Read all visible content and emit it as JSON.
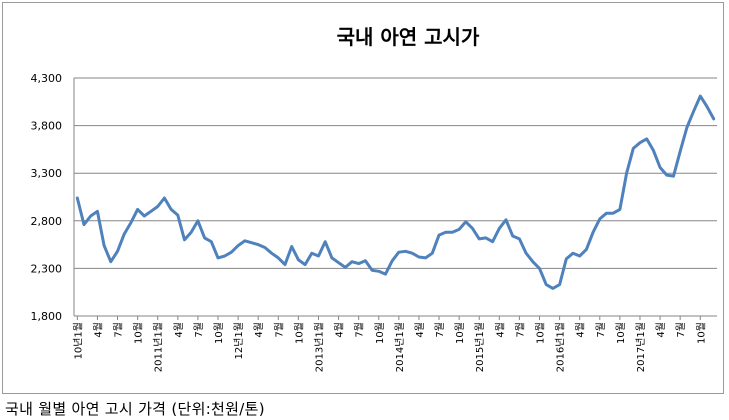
{
  "caption": "국내 월별 아연 고시 가격 (단위:천원/톤)",
  "chart_data": {
    "type": "line",
    "title": "국내 아연 고시가",
    "xlabel": "",
    "ylabel": "",
    "ylim": [
      1800,
      4300
    ],
    "yticks": [
      1800,
      2300,
      2800,
      3300,
      3800,
      4300
    ],
    "ytick_labels": [
      "1,800",
      "2,300",
      "2,800",
      "3,300",
      "3,800",
      "4,300"
    ],
    "grid": true,
    "line_color": "#4f81bd",
    "x_start": "2010-01",
    "tick_every_months": 3,
    "x_tick_labels": [
      "10년1월",
      "4월",
      "7월",
      "10월",
      "2011년1월",
      "4월",
      "7월",
      "10월",
      "12년1월",
      "4월",
      "7월",
      "10월",
      "2013년1월",
      "4월",
      "7월",
      "10월",
      "2014년1월",
      "4월",
      "7월",
      "10월",
      "2015년1월",
      "4월",
      "7월",
      "10월",
      "2016년1월",
      "4월",
      "7월",
      "10월",
      "2017년1월",
      "4월",
      "7월",
      "10월"
    ],
    "series": [
      {
        "values": [
          3040,
          2760,
          2850,
          2900,
          2540,
          2370,
          2480,
          2660,
          2780,
          2920,
          2850,
          2900,
          2950,
          3040,
          2920,
          2860,
          2600,
          2680,
          2800,
          2620,
          2580,
          2410,
          2430,
          2470,
          2540,
          2590,
          2570,
          2550,
          2520,
          2460,
          2410,
          2340,
          2530,
          2390,
          2340,
          2460,
          2430,
          2580,
          2410,
          2360,
          2310,
          2370,
          2350,
          2380,
          2280,
          2270,
          2240,
          2380,
          2470,
          2480,
          2460,
          2420,
          2410,
          2460,
          2650,
          2680,
          2680,
          2710,
          2790,
          2720,
          2610,
          2620,
          2580,
          2720,
          2810,
          2640,
          2610,
          2460,
          2370,
          2300,
          2130,
          2090,
          2130,
          2400,
          2460,
          2430,
          2500,
          2680,
          2820,
          2880,
          2880,
          2920,
          3300,
          3560,
          3620,
          3660,
          3540,
          3360,
          3280,
          3270,
          3530,
          3780,
          3950,
          4110,
          4000,
          3870
        ]
      }
    ]
  }
}
